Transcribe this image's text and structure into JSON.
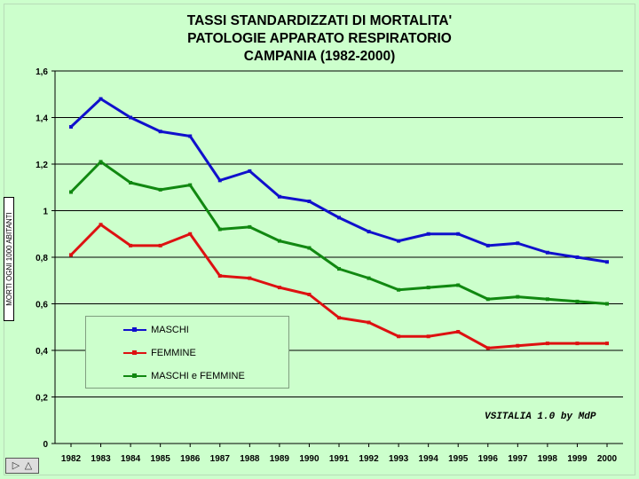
{
  "chart_data": {
    "type": "line",
    "title": [
      "TASSI STANDARDIZZATI DI MORTALITA'",
      "PATOLOGIE APPARATO RESPIRATORIO",
      "CAMPANIA (1982-2000)"
    ],
    "ylabel": "MORTI OGNI 1000 ABITANTI",
    "xlabel": "",
    "x": [
      "1982",
      "1983",
      "1984",
      "1985",
      "1986",
      "1987",
      "1988",
      "1989",
      "1990",
      "1991",
      "1992",
      "1993",
      "1994",
      "1995",
      "1996",
      "1997",
      "1998",
      "1999",
      "2000"
    ],
    "yticks": [
      "0",
      "0,2",
      "0,4",
      "0,6",
      "0,8",
      "1",
      "1,2",
      "1,4",
      "1,6"
    ],
    "ylim": [
      0,
      1.6
    ],
    "grid": true,
    "legend": "inside-bottom-left",
    "series": [
      {
        "name": "MASCHI",
        "color": "#1010cc",
        "values": [
          1.36,
          1.48,
          1.4,
          1.34,
          1.32,
          1.13,
          1.17,
          1.06,
          1.04,
          0.97,
          0.91,
          0.87,
          0.9,
          0.9,
          0.85,
          0.86,
          0.82,
          0.8,
          0.78
        ]
      },
      {
        "name": "FEMMINE",
        "color": "#dd1111",
        "values": [
          0.81,
          0.94,
          0.85,
          0.85,
          0.9,
          0.72,
          0.71,
          0.67,
          0.64,
          0.54,
          0.52,
          0.46,
          0.46,
          0.48,
          0.41,
          0.42,
          0.43,
          0.43,
          0.43
        ]
      },
      {
        "name": "MASCHI e FEMMINE",
        "color": "#118811",
        "values": [
          1.08,
          1.21,
          1.12,
          1.09,
          1.11,
          0.92,
          0.93,
          0.87,
          0.84,
          0.75,
          0.71,
          0.66,
          0.67,
          0.68,
          0.62,
          0.63,
          0.62,
          0.61,
          0.6
        ]
      }
    ],
    "annotation": "VSITALIA 1.0 by MdP"
  },
  "colors": {
    "background": "#ccffcc"
  },
  "icons": {
    "nav": "navigation-arrow-icon"
  }
}
